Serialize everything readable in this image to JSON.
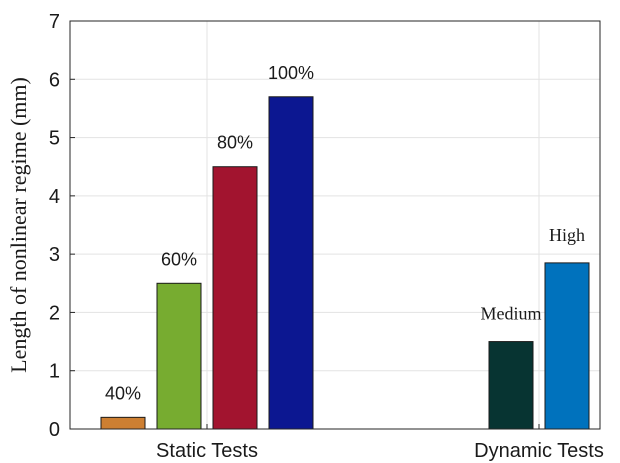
{
  "chart_data": {
    "type": "bar",
    "title": "",
    "xlabel": "",
    "ylabel": "Length of nonlinear regime (mm)",
    "ylim": [
      0,
      7
    ],
    "yticks": [
      0,
      1,
      2,
      3,
      4,
      5,
      6,
      7
    ],
    "grid": true,
    "groups": [
      {
        "label": "Static Tests",
        "bars": [
          {
            "label": "40%",
            "value": 0.2,
            "color": "#cd7f32"
          },
          {
            "label": "60%",
            "value": 2.5,
            "color": "#77ac30"
          },
          {
            "label": "80%",
            "value": 4.5,
            "color": "#a2142f"
          },
          {
            "label": "100%",
            "value": 5.7,
            "color": "#0c1791"
          }
        ]
      },
      {
        "label": "Dynamic Tests",
        "bars": [
          {
            "label": "Medium",
            "value": 1.5,
            "color": "#073432"
          },
          {
            "label": "High",
            "value": 2.85,
            "color": "#0072bd"
          }
        ]
      }
    ]
  }
}
